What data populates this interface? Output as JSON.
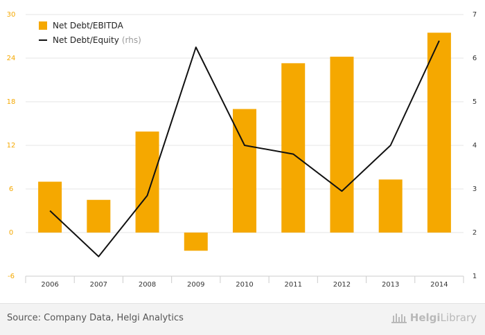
{
  "chart_data": {
    "type": "bar+line",
    "categories": [
      "2006",
      "2007",
      "2008",
      "2009",
      "2010",
      "2011",
      "2012",
      "2013",
      "2014"
    ],
    "series": [
      {
        "name": "Net Debt/EBITDA",
        "type": "bar",
        "axis": "left",
        "color": "#f5a800",
        "values": [
          7.0,
          4.5,
          13.9,
          -2.5,
          17.0,
          23.3,
          24.2,
          7.3,
          27.5
        ]
      },
      {
        "name": "Net Debt/Equity",
        "type": "line",
        "axis": "right",
        "color": "#111111",
        "values": [
          2.5,
          1.45,
          2.85,
          6.25,
          4.0,
          3.8,
          2.95,
          4.0,
          6.4
        ]
      }
    ],
    "left_axis": {
      "min": -6,
      "max": 30,
      "ticks": [
        -6,
        0,
        6,
        12,
        18,
        24,
        30
      ],
      "color": "#f5a800"
    },
    "right_axis": {
      "min": 1,
      "max": 7,
      "ticks": [
        1,
        2,
        3,
        4,
        5,
        6,
        7
      ]
    },
    "legend": {
      "position": "top-left",
      "bar_label": "Net Debt/EBITDA",
      "line_label": "Net Debt/Equity",
      "line_note": "(rhs)"
    }
  },
  "footer": {
    "source": "Source: Company Data, Helgi Analytics",
    "brand_prefix": "Helgi",
    "brand_suffix": "Library"
  }
}
